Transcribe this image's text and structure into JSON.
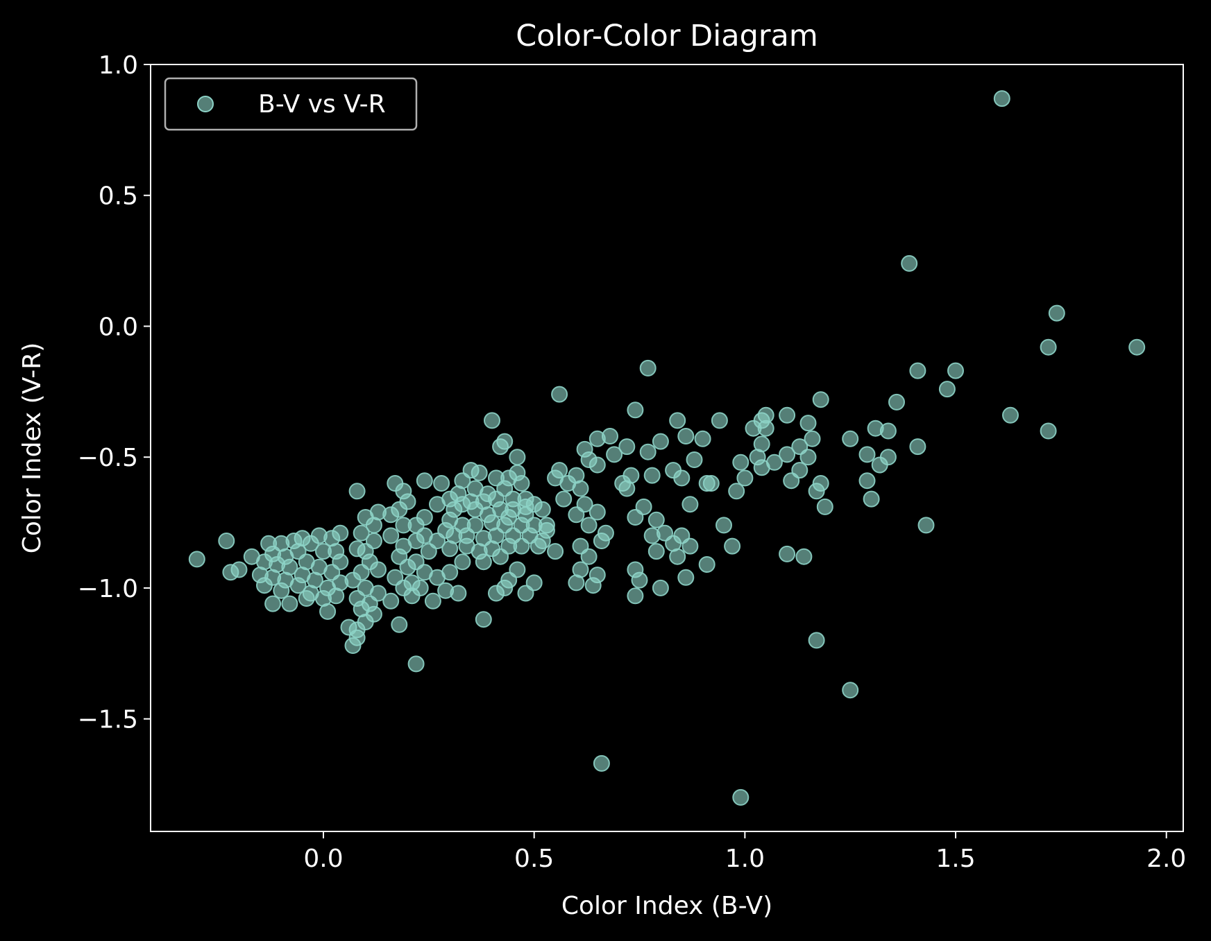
{
  "chart_data": {
    "type": "scatter",
    "title": "Color-Color Diagram",
    "xlabel": "Color Index (B-V)",
    "ylabel": "Color Index (V-R)",
    "xlim": [
      -0.41,
      2.04
    ],
    "ylim": [
      -1.93,
      1.0
    ],
    "xticks": [
      0.0,
      0.5,
      1.0,
      1.5,
      2.0
    ],
    "xtick_labels": [
      "0.0",
      "0.5",
      "1.0",
      "1.5",
      "2.0"
    ],
    "yticks": [
      1.0,
      0.5,
      0.0,
      -0.5,
      -1.0,
      -1.5
    ],
    "ytick_labels": [
      "1.0",
      "0.5",
      "0.0",
      "−0.5",
      "−1.0",
      "−1.5"
    ],
    "grid": false,
    "legend": {
      "position": "top-left",
      "entries": [
        "B-V vs V-R"
      ]
    },
    "colors": {
      "background": "#000000",
      "marker": "#8dd3c7",
      "axes": "#ffffff",
      "legend_frame": "#b0b0b0"
    },
    "series": [
      {
        "name": "B-V vs V-R",
        "marker_alpha": 0.6,
        "points": [
          [
            1.61,
            0.87
          ],
          [
            1.39,
            0.24
          ],
          [
            1.74,
            0.05
          ],
          [
            1.72,
            -0.08
          ],
          [
            1.93,
            -0.08
          ],
          [
            1.41,
            -0.17
          ],
          [
            1.5,
            -0.17
          ],
          [
            1.48,
            -0.24
          ],
          [
            1.36,
            -0.29
          ],
          [
            1.63,
            -0.34
          ],
          [
            1.72,
            -0.4
          ],
          [
            1.41,
            -0.46
          ],
          [
            1.43,
            -0.76
          ],
          [
            1.31,
            -0.39
          ],
          [
            1.34,
            -0.4
          ],
          [
            1.29,
            -0.49
          ],
          [
            1.32,
            -0.53
          ],
          [
            1.34,
            -0.5
          ],
          [
            1.29,
            -0.59
          ],
          [
            1.3,
            -0.66
          ],
          [
            1.25,
            -0.43
          ],
          [
            1.18,
            -0.28
          ],
          [
            1.16,
            -0.43
          ],
          [
            1.15,
            -0.37
          ],
          [
            1.15,
            -0.5
          ],
          [
            1.13,
            -0.46
          ],
          [
            1.1,
            -0.34
          ],
          [
            1.1,
            -0.49
          ],
          [
            1.13,
            -0.55
          ],
          [
            1.11,
            -0.59
          ],
          [
            1.17,
            -0.63
          ],
          [
            1.18,
            -0.6
          ],
          [
            1.19,
            -0.69
          ],
          [
            1.1,
            -0.87
          ],
          [
            1.14,
            -0.88
          ],
          [
            1.17,
            -1.2
          ],
          [
            1.25,
            -1.39
          ],
          [
            1.05,
            -0.34
          ],
          [
            1.04,
            -0.36
          ],
          [
            1.02,
            -0.39
          ],
          [
            1.05,
            -0.39
          ],
          [
            1.04,
            -0.45
          ],
          [
            1.03,
            -0.5
          ],
          [
            1.07,
            -0.52
          ],
          [
            1.04,
            -0.54
          ],
          [
            0.99,
            -0.52
          ],
          [
            1.0,
            -0.58
          ],
          [
            0.98,
            -0.63
          ],
          [
            0.94,
            -0.36
          ],
          [
            0.9,
            -0.43
          ],
          [
            0.88,
            -0.51
          ],
          [
            0.91,
            -0.6
          ],
          [
            0.92,
            -0.6
          ],
          [
            0.87,
            -0.68
          ],
          [
            0.95,
            -0.76
          ],
          [
            0.97,
            -0.84
          ],
          [
            0.91,
            -0.91
          ],
          [
            0.86,
            -0.96
          ],
          [
            0.99,
            -1.8
          ],
          [
            0.66,
            -1.67
          ],
          [
            0.77,
            -0.16
          ],
          [
            0.56,
            -0.26
          ],
          [
            0.74,
            -0.32
          ],
          [
            0.84,
            -0.36
          ],
          [
            0.86,
            -0.42
          ],
          [
            0.8,
            -0.44
          ],
          [
            0.77,
            -0.48
          ],
          [
            0.72,
            -0.46
          ],
          [
            0.68,
            -0.42
          ],
          [
            0.65,
            -0.43
          ],
          [
            0.69,
            -0.49
          ],
          [
            0.62,
            -0.47
          ],
          [
            0.63,
            -0.51
          ],
          [
            0.65,
            -0.53
          ],
          [
            0.83,
            -0.55
          ],
          [
            0.85,
            -0.58
          ],
          [
            0.78,
            -0.57
          ],
          [
            0.73,
            -0.57
          ],
          [
            0.71,
            -0.6
          ],
          [
            0.72,
            -0.62
          ],
          [
            0.76,
            -0.69
          ],
          [
            0.74,
            -0.73
          ],
          [
            0.79,
            -0.74
          ],
          [
            0.81,
            -0.79
          ],
          [
            0.78,
            -0.8
          ],
          [
            0.83,
            -0.83
          ],
          [
            0.85,
            -0.8
          ],
          [
            0.87,
            -0.84
          ],
          [
            0.84,
            -0.88
          ],
          [
            0.74,
            -0.93
          ],
          [
            0.75,
            -0.97
          ],
          [
            0.8,
            -1.0
          ],
          [
            0.74,
            -1.03
          ],
          [
            0.79,
            -0.86
          ],
          [
            0.56,
            -0.55
          ],
          [
            0.6,
            -0.57
          ],
          [
            0.58,
            -0.6
          ],
          [
            0.61,
            -0.62
          ],
          [
            0.55,
            -0.58
          ],
          [
            0.57,
            -0.66
          ],
          [
            0.62,
            -0.68
          ],
          [
            0.6,
            -0.72
          ],
          [
            0.65,
            -0.71
          ],
          [
            0.63,
            -0.76
          ],
          [
            0.67,
            -0.79
          ],
          [
            0.66,
            -0.82
          ],
          [
            0.61,
            -0.84
          ],
          [
            0.63,
            -0.88
          ],
          [
            0.61,
            -0.93
          ],
          [
            0.65,
            -0.95
          ],
          [
            0.64,
            -0.99
          ],
          [
            0.6,
            -0.98
          ],
          [
            0.55,
            -0.86
          ],
          [
            0.52,
            -0.82
          ],
          [
            0.53,
            -0.76
          ],
          [
            0.5,
            -0.98
          ],
          [
            0.48,
            -1.02
          ],
          [
            0.46,
            -0.93
          ],
          [
            0.44,
            -0.97
          ],
          [
            0.43,
            -1.0
          ],
          [
            0.41,
            -1.02
          ],
          [
            0.38,
            -1.12
          ],
          [
            0.4,
            -0.36
          ],
          [
            0.43,
            -0.44
          ],
          [
            0.42,
            -0.46
          ],
          [
            0.46,
            -0.5
          ],
          [
            0.46,
            -0.56
          ],
          [
            0.47,
            -0.6
          ],
          [
            0.44,
            -0.58
          ],
          [
            0.41,
            -0.58
          ],
          [
            0.37,
            -0.56
          ],
          [
            0.35,
            -0.55
          ],
          [
            0.33,
            -0.59
          ],
          [
            0.36,
            -0.62
          ],
          [
            0.39,
            -0.64
          ],
          [
            0.43,
            -0.62
          ],
          [
            0.45,
            -0.66
          ],
          [
            0.48,
            -0.66
          ],
          [
            0.5,
            -0.68
          ],
          [
            0.52,
            -0.7
          ],
          [
            0.48,
            -0.72
          ],
          [
            0.45,
            -0.7
          ],
          [
            0.42,
            -0.7
          ],
          [
            0.39,
            -0.72
          ],
          [
            0.36,
            -0.7
          ],
          [
            0.33,
            -0.68
          ],
          [
            0.31,
            -0.7
          ],
          [
            0.3,
            -0.74
          ],
          [
            0.33,
            -0.76
          ],
          [
            0.36,
            -0.76
          ],
          [
            0.4,
            -0.75
          ],
          [
            0.43,
            -0.76
          ],
          [
            0.47,
            -0.76
          ],
          [
            0.5,
            -0.76
          ],
          [
            0.53,
            -0.78
          ],
          [
            0.49,
            -0.8
          ],
          [
            0.45,
            -0.8
          ],
          [
            0.41,
            -0.8
          ],
          [
            0.38,
            -0.81
          ],
          [
            0.34,
            -0.8
          ],
          [
            0.31,
            -0.8
          ],
          [
            0.29,
            -0.78
          ],
          [
            0.27,
            -0.82
          ],
          [
            0.3,
            -0.85
          ],
          [
            0.34,
            -0.84
          ],
          [
            0.37,
            -0.86
          ],
          [
            0.4,
            -0.85
          ],
          [
            0.44,
            -0.84
          ],
          [
            0.47,
            -0.84
          ],
          [
            0.51,
            -0.84
          ],
          [
            0.42,
            -0.88
          ],
          [
            0.38,
            -0.9
          ],
          [
            0.33,
            -0.9
          ],
          [
            0.3,
            -0.94
          ],
          [
            0.27,
            -0.96
          ],
          [
            0.32,
            -1.02
          ],
          [
            0.29,
            -1.01
          ],
          [
            0.26,
            -1.05
          ],
          [
            0.3,
            -0.66
          ],
          [
            0.32,
            -0.64
          ],
          [
            0.35,
            -0.67
          ],
          [
            0.38,
            -0.67
          ],
          [
            0.41,
            -0.66
          ],
          [
            0.44,
            -0.73
          ],
          [
            0.48,
            -0.69
          ],
          [
            0.24,
            -0.59
          ],
          [
            0.28,
            -0.6
          ],
          [
            0.27,
            -0.68
          ],
          [
            0.24,
            -0.73
          ],
          [
            0.22,
            -0.76
          ],
          [
            0.24,
            -0.8
          ],
          [
            0.22,
            -0.82
          ],
          [
            0.25,
            -0.86
          ],
          [
            0.22,
            -0.9
          ],
          [
            0.24,
            -0.94
          ],
          [
            0.21,
            -0.98
          ],
          [
            0.23,
            -1.0
          ],
          [
            0.21,
            -1.03
          ],
          [
            0.22,
            -1.29
          ],
          [
            0.17,
            -0.6
          ],
          [
            0.19,
            -0.63
          ],
          [
            0.2,
            -0.67
          ],
          [
            0.18,
            -0.7
          ],
          [
            0.16,
            -0.72
          ],
          [
            0.19,
            -0.76
          ],
          [
            0.16,
            -0.8
          ],
          [
            0.19,
            -0.84
          ],
          [
            0.18,
            -0.88
          ],
          [
            0.2,
            -0.92
          ],
          [
            0.17,
            -0.96
          ],
          [
            0.19,
            -1.0
          ],
          [
            0.16,
            -1.05
          ],
          [
            0.18,
            -1.14
          ],
          [
            0.13,
            -0.71
          ],
          [
            0.12,
            -0.76
          ],
          [
            0.1,
            -0.73
          ],
          [
            0.09,
            -0.79
          ],
          [
            0.12,
            -0.82
          ],
          [
            0.1,
            -0.86
          ],
          [
            0.08,
            -0.85
          ],
          [
            0.11,
            -0.9
          ],
          [
            0.13,
            -0.93
          ],
          [
            0.09,
            -0.94
          ],
          [
            0.07,
            -0.97
          ],
          [
            0.1,
            -1.0
          ],
          [
            0.08,
            -1.04
          ],
          [
            0.11,
            -1.06
          ],
          [
            0.13,
            -1.02
          ],
          [
            0.09,
            -1.08
          ],
          [
            0.12,
            -1.1
          ],
          [
            0.1,
            -1.13
          ],
          [
            0.08,
            -1.16
          ],
          [
            0.06,
            -1.15
          ],
          [
            0.08,
            -1.19
          ],
          [
            0.07,
            -1.22
          ],
          [
            0.08,
            -0.63
          ],
          [
            0.04,
            -0.79
          ],
          [
            0.02,
            -0.81
          ],
          [
            -0.01,
            -0.8
          ],
          [
            0.03,
            -0.86
          ],
          [
            0.0,
            -0.86
          ],
          [
            -0.03,
            -0.83
          ],
          [
            0.04,
            -0.9
          ],
          [
            0.02,
            -0.94
          ],
          [
            -0.01,
            -0.92
          ],
          [
            0.04,
            -0.98
          ],
          [
            0.01,
            -1.0
          ],
          [
            -0.02,
            -0.97
          ],
          [
            0.03,
            -1.03
          ],
          [
            0.0,
            -1.04
          ],
          [
            -0.03,
            -1.02
          ],
          [
            0.01,
            -1.09
          ],
          [
            -0.05,
            -0.81
          ],
          [
            -0.07,
            -0.82
          ],
          [
            -0.1,
            -0.83
          ],
          [
            -0.13,
            -0.83
          ],
          [
            -0.06,
            -0.86
          ],
          [
            -0.09,
            -0.88
          ],
          [
            -0.12,
            -0.87
          ],
          [
            -0.04,
            -0.9
          ],
          [
            -0.08,
            -0.92
          ],
          [
            -0.11,
            -0.91
          ],
          [
            -0.14,
            -0.9
          ],
          [
            -0.05,
            -0.95
          ],
          [
            -0.09,
            -0.97
          ],
          [
            -0.12,
            -0.96
          ],
          [
            -0.15,
            -0.95
          ],
          [
            -0.06,
            -0.99
          ],
          [
            -0.1,
            -1.01
          ],
          [
            -0.14,
            -0.99
          ],
          [
            -0.04,
            -1.04
          ],
          [
            -0.08,
            -1.06
          ],
          [
            -0.12,
            -1.06
          ],
          [
            -0.17,
            -0.88
          ],
          [
            -0.2,
            -0.93
          ],
          [
            -0.22,
            -0.94
          ],
          [
            -0.23,
            -0.82
          ],
          [
            -0.3,
            -0.89
          ]
        ]
      }
    ]
  }
}
